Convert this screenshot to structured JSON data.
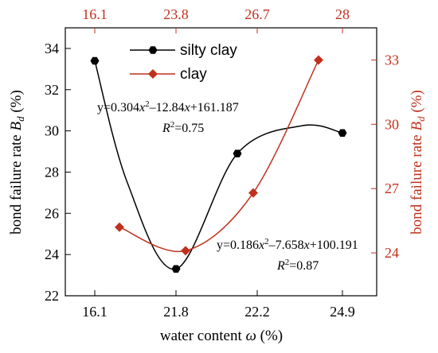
{
  "chart_data": {
    "type": "line",
    "xlabel_parts": [
      "water content ",
      "ω",
      " (%)"
    ],
    "ylabel_left_parts": [
      "bond failure rate ",
      "B",
      "d",
      " (%)"
    ],
    "ylabel_right_parts": [
      "bond failure rate ",
      "B",
      "d",
      " (%)"
    ],
    "x_bottom_ticks": [
      "16.1",
      "21.8",
      "22.2",
      "24.9"
    ],
    "x_top_ticks": [
      "16.1",
      "23.8",
      "26.7",
      "28"
    ],
    "ylim_left": [
      22,
      35
    ],
    "yticks_left": [
      22,
      24,
      26,
      28,
      30,
      32,
      34
    ],
    "ylim_right": [
      22,
      34.5
    ],
    "yticks_right": [
      24,
      27,
      30,
      33
    ],
    "grid": false,
    "legend_position": "top-left",
    "colors": {
      "silty": "#000000",
      "clay": "#c0311d",
      "right_axis": "#c0311d"
    },
    "series": [
      {
        "name": "silty clay",
        "axis": "left",
        "marker": "hexagon",
        "x": [
          "16.1",
          "21.8",
          "22.2",
          "24.9"
        ],
        "values": [
          33.4,
          23.3,
          28.9,
          29.9
        ]
      },
      {
        "name": "clay",
        "axis": "right",
        "marker": "diamond",
        "x": [
          "16.1",
          "23.8",
          "26.7",
          "28"
        ],
        "values": [
          25.2,
          24.1,
          26.8,
          33.0
        ]
      }
    ],
    "annotations": [
      {
        "id": "silty",
        "eq": [
          "y=0.304",
          "x",
          "2",
          "–12.84",
          "x",
          "+161.187"
        ],
        "r2": [
          "R",
          "2",
          "=0.75"
        ]
      },
      {
        "id": "clay",
        "eq": [
          "y=0.186",
          "x",
          "2",
          "–7.658",
          "x",
          "+100.191"
        ],
        "r2": [
          "R",
          "2",
          "=0.87"
        ]
      }
    ]
  }
}
